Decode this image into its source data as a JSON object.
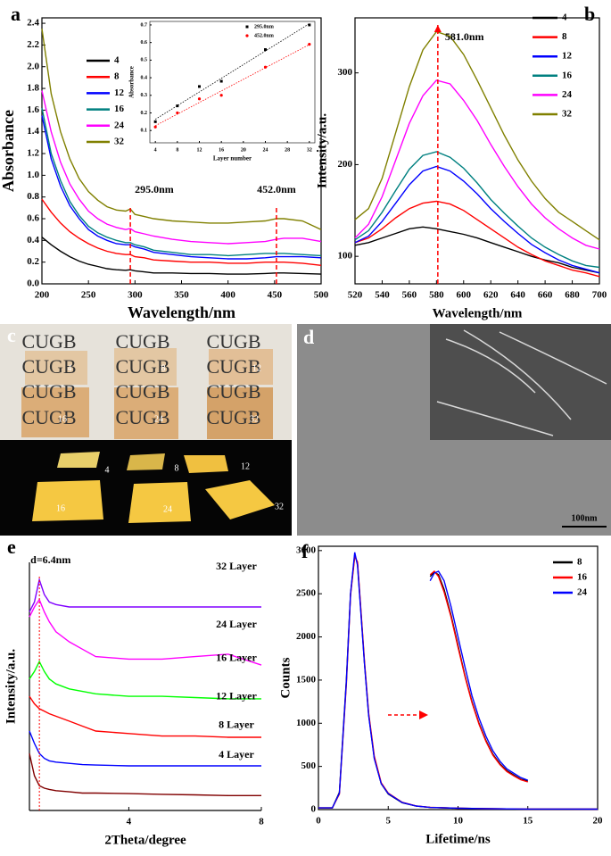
{
  "panel_labels": [
    "a",
    "b",
    "c",
    "d",
    "e",
    "f"
  ],
  "photo_c": {
    "watermark": "CUGB",
    "labels": [
      "4",
      "8",
      "12",
      "16",
      "24",
      "32"
    ]
  },
  "sem_d": {
    "scale_bar": "100nm"
  },
  "chart_data": [
    {
      "type": "line",
      "xlabel": "Wavelength/nm",
      "ylabel": "Absorbance",
      "x": [
        200,
        210,
        220,
        230,
        240,
        250,
        260,
        270,
        280,
        290,
        295,
        300,
        310,
        320,
        340,
        360,
        380,
        400,
        420,
        440,
        452,
        460,
        480,
        500
      ],
      "xlim": [
        200,
        500
      ],
      "xticks": [
        200,
        250,
        300,
        350,
        400,
        450,
        500
      ],
      "ylim": [
        0,
        2.45
      ],
      "yticks": [
        {
          "value": 0,
          "label": "0.0"
        },
        0.2,
        0.4,
        0.6,
        0.8,
        {
          "value": 1,
          "label": "1.0"
        },
        1.2,
        1.4,
        1.6,
        1.8,
        {
          "value": 2,
          "label": "2.0"
        },
        2.2,
        2.4
      ],
      "series": [
        {
          "name": "4",
          "color": "#000000",
          "values": [
            0.43,
            0.36,
            0.3,
            0.25,
            0.21,
            0.18,
            0.16,
            0.14,
            0.13,
            0.125,
            0.13,
            0.12,
            0.11,
            0.1,
            0.1,
            0.095,
            0.095,
            0.09,
            0.09,
            0.095,
            0.1,
            0.1,
            0.095,
            0.09
          ]
        },
        {
          "name": "8",
          "color": "#ff0000",
          "values": [
            0.78,
            0.66,
            0.56,
            0.48,
            0.42,
            0.37,
            0.33,
            0.3,
            0.28,
            0.27,
            0.27,
            0.25,
            0.24,
            0.22,
            0.21,
            0.2,
            0.2,
            0.19,
            0.19,
            0.2,
            0.2,
            0.2,
            0.19,
            0.17
          ]
        },
        {
          "name": "12",
          "color": "#0000ff",
          "values": [
            1.55,
            1.15,
            0.9,
            0.72,
            0.6,
            0.5,
            0.44,
            0.4,
            0.37,
            0.36,
            0.36,
            0.34,
            0.32,
            0.29,
            0.27,
            0.25,
            0.24,
            0.23,
            0.23,
            0.24,
            0.25,
            0.25,
            0.25,
            0.24
          ]
        },
        {
          "name": "16",
          "color": "#008080",
          "values": [
            1.62,
            1.2,
            0.95,
            0.76,
            0.63,
            0.53,
            0.47,
            0.43,
            0.4,
            0.38,
            0.38,
            0.36,
            0.34,
            0.31,
            0.29,
            0.27,
            0.27,
            0.26,
            0.27,
            0.28,
            0.28,
            0.28,
            0.27,
            0.26
          ]
        },
        {
          "name": "24",
          "color": "#ff00ff",
          "values": [
            1.78,
            1.4,
            1.12,
            0.92,
            0.78,
            0.67,
            0.6,
            0.55,
            0.52,
            0.5,
            0.51,
            0.48,
            0.46,
            0.44,
            0.41,
            0.39,
            0.38,
            0.37,
            0.38,
            0.39,
            0.41,
            0.42,
            0.42,
            0.39
          ]
        },
        {
          "name": "32",
          "color": "#808000",
          "values": [
            2.35,
            1.75,
            1.4,
            1.15,
            0.97,
            0.85,
            0.77,
            0.71,
            0.68,
            0.67,
            0.69,
            0.64,
            0.62,
            0.6,
            0.58,
            0.57,
            0.56,
            0.56,
            0.57,
            0.58,
            0.6,
            0.6,
            0.58,
            0.5
          ]
        }
      ],
      "annotations": [
        {
          "text": "295.0nm",
          "x": 295
        },
        {
          "text": "452.0nm",
          "x": 452
        }
      ]
    },
    {
      "type": "scatter",
      "xlabel": "Layer number",
      "ylabel": "Absorbance",
      "x": [
        4,
        8,
        12,
        16,
        24,
        32
      ],
      "xlim": [
        3,
        33
      ],
      "xticks": [
        4,
        8,
        12,
        16,
        20,
        24,
        28,
        32
      ],
      "ylim": [
        0.03,
        0.72
      ],
      "yticks": [
        0.1,
        0.2,
        0.3,
        0.4,
        0.5,
        0.6,
        0.7
      ],
      "fit_lines": true,
      "series": [
        {
          "name": "295.0nm",
          "color": "#000000",
          "marker": "square",
          "values": [
            0.15,
            0.24,
            0.35,
            0.38,
            0.56,
            0.7
          ]
        },
        {
          "name": "452.0nm",
          "color": "#ff0000",
          "marker": "circle",
          "values": [
            0.12,
            0.2,
            0.28,
            0.3,
            0.46,
            0.59
          ]
        }
      ]
    },
    {
      "type": "line",
      "xlabel": "Wavelength/nm",
      "ylabel": "Intensity/a.u.",
      "x": [
        520,
        530,
        540,
        550,
        560,
        570,
        580,
        590,
        600,
        610,
        620,
        630,
        640,
        650,
        660,
        670,
        680,
        690,
        700
      ],
      "xlim": [
        520,
        700
      ],
      "xticks": [
        520,
        540,
        560,
        580,
        600,
        620,
        640,
        660,
        680,
        700
      ],
      "ylim": [
        70,
        360
      ],
      "yticks": [
        100,
        200,
        300
      ],
      "series": [
        {
          "name": "4",
          "color": "#000000",
          "values": [
            112,
            115,
            120,
            125,
            130,
            132,
            130,
            127,
            124,
            120,
            115,
            110,
            105,
            100,
            96,
            93,
            88,
            85,
            82
          ]
        },
        {
          "name": "8",
          "color": "#ff0000",
          "values": [
            115,
            120,
            130,
            142,
            152,
            158,
            160,
            157,
            150,
            140,
            130,
            120,
            110,
            102,
            95,
            90,
            85,
            82,
            78
          ]
        },
        {
          "name": "12",
          "color": "#0000ff",
          "values": [
            115,
            122,
            138,
            158,
            178,
            193,
            198,
            193,
            182,
            168,
            152,
            138,
            125,
            113,
            104,
            96,
            90,
            86,
            82
          ]
        },
        {
          "name": "16",
          "color": "#008080",
          "values": [
            118,
            128,
            148,
            172,
            195,
            210,
            214,
            208,
            196,
            180,
            162,
            147,
            133,
            120,
            110,
            102,
            95,
            90,
            88
          ]
        },
        {
          "name": "24",
          "color": "#ff00ff",
          "values": [
            120,
            135,
            165,
            205,
            245,
            275,
            292,
            288,
            270,
            248,
            222,
            198,
            176,
            157,
            142,
            130,
            120,
            112,
            108
          ]
        },
        {
          "name": "32",
          "color": "#808000",
          "values": [
            140,
            152,
            185,
            235,
            285,
            325,
            345,
            340,
            320,
            292,
            262,
            232,
            205,
            182,
            163,
            148,
            138,
            128,
            118
          ]
        }
      ],
      "annotations": [
        {
          "text": "581.0nm",
          "x": 581
        }
      ]
    },
    {
      "type": "line",
      "xlabel": "2Theta/degree",
      "ylabel": "Intensity/a.u.",
      "x": [
        1,
        1.15,
        1.3,
        1.45,
        1.6,
        1.8,
        2.2,
        2.6,
        3,
        4,
        5,
        6,
        7,
        8
      ],
      "xlim": [
        1,
        8
      ],
      "xticks": [
        4,
        8
      ],
      "ylim": [
        0,
        100
      ],
      "series": [
        {
          "name": "4 Layer",
          "color": "#800000",
          "values": [
            23,
            14,
            10,
            9,
            8.5,
            8,
            7.5,
            7,
            7,
            6.8,
            6.5,
            6.3,
            6,
            6
          ]
        },
        {
          "name": "8 Layer",
          "color": "#0000ff",
          "values": [
            32,
            27,
            23,
            21,
            20,
            19.5,
            19,
            18.5,
            18.3,
            18,
            18,
            18,
            18,
            18
          ]
        },
        {
          "name": "12 Layer",
          "color": "#ff0000",
          "values": [
            46,
            43,
            41,
            40,
            39,
            38,
            36,
            34,
            32,
            31,
            30,
            30,
            29.5,
            29.5
          ]
        },
        {
          "name": "16 Layer",
          "color": "#00ff00",
          "values": [
            53,
            56,
            60,
            56,
            53,
            51,
            49,
            48,
            47,
            46,
            46,
            45.5,
            45,
            45
          ]
        },
        {
          "name": "24 Layer",
          "color": "#ff00ff",
          "values": [
            78,
            82,
            85,
            80,
            76,
            72,
            68,
            65,
            62,
            61,
            61,
            62,
            63,
            58.6
          ]
        },
        {
          "name": "32 Layer",
          "color": "#8000ff",
          "values": [
            80,
            84,
            93,
            87,
            84,
            83,
            82,
            82,
            82,
            82,
            82,
            82,
            82,
            82
          ]
        }
      ],
      "annotations": [
        {
          "text": "d=6.4nm",
          "x": 1.3
        }
      ]
    },
    {
      "type": "line",
      "xlabel": "Lifetime/ns",
      "ylabel": "Counts",
      "x": [
        0,
        1,
        1.5,
        2,
        2.3,
        2.6,
        2.8,
        3,
        3.3,
        3.6,
        4,
        4.5,
        5,
        6,
        7,
        8,
        10,
        12,
        15,
        20
      ],
      "xlim": [
        0,
        20
      ],
      "xticks": [
        0,
        5,
        10,
        15,
        20
      ],
      "ylim": [
        0,
        3050
      ],
      "yticks": [
        0,
        500,
        1000,
        1500,
        2000,
        2500,
        3000
      ],
      "series": [
        {
          "name": "8",
          "color": "#000000",
          "values": [
            20,
            20,
            200,
            1500,
            2500,
            2950,
            2850,
            2400,
            1700,
            1100,
            600,
            300,
            180,
            80,
            40,
            25,
            15,
            10,
            5,
            5
          ]
        },
        {
          "name": "16",
          "color": "#ff0000",
          "values": [
            20,
            20,
            180,
            1450,
            2480,
            2930,
            2870,
            2420,
            1720,
            1120,
            620,
            310,
            190,
            85,
            42,
            26,
            16,
            10,
            6,
            5
          ]
        },
        {
          "name": "24",
          "color": "#0000ff",
          "values": [
            20,
            20,
            190,
            1480,
            2500,
            2980,
            2830,
            2380,
            1690,
            1090,
            590,
            300,
            185,
            82,
            41,
            25,
            15,
            10,
            6,
            5
          ]
        },
        {
          "color": "#000000",
          "x": [
            8,
            8.3,
            8.6,
            9,
            9.5,
            10,
            10.5,
            11,
            11.5,
            12,
            12.5,
            13,
            13.5,
            14,
            14.5,
            15
          ],
          "values": [
            2700,
            2750,
            2720,
            2550,
            2250,
            1900,
            1550,
            1250,
            1000,
            800,
            640,
            530,
            450,
            400,
            350,
            330
          ]
        },
        {
          "color": "#ff0000",
          "x": [
            8,
            8.3,
            8.6,
            9,
            9.5,
            10,
            10.5,
            11,
            11.5,
            12,
            12.5,
            13,
            13.5,
            14,
            14.5,
            15
          ],
          "values": [
            2720,
            2760,
            2700,
            2520,
            2230,
            1880,
            1540,
            1240,
            990,
            790,
            630,
            520,
            440,
            390,
            345,
            320
          ]
        },
        {
          "color": "#0000ff",
          "x": [
            8,
            8.3,
            8.6,
            9,
            9.5,
            10,
            10.5,
            11,
            11.5,
            12,
            12.5,
            13,
            13.5,
            14,
            14.5,
            15
          ],
          "values": [
            2650,
            2740,
            2760,
            2650,
            2350,
            2000,
            1650,
            1320,
            1060,
            850,
            680,
            560,
            470,
            420,
            370,
            340
          ]
        }
      ]
    }
  ]
}
